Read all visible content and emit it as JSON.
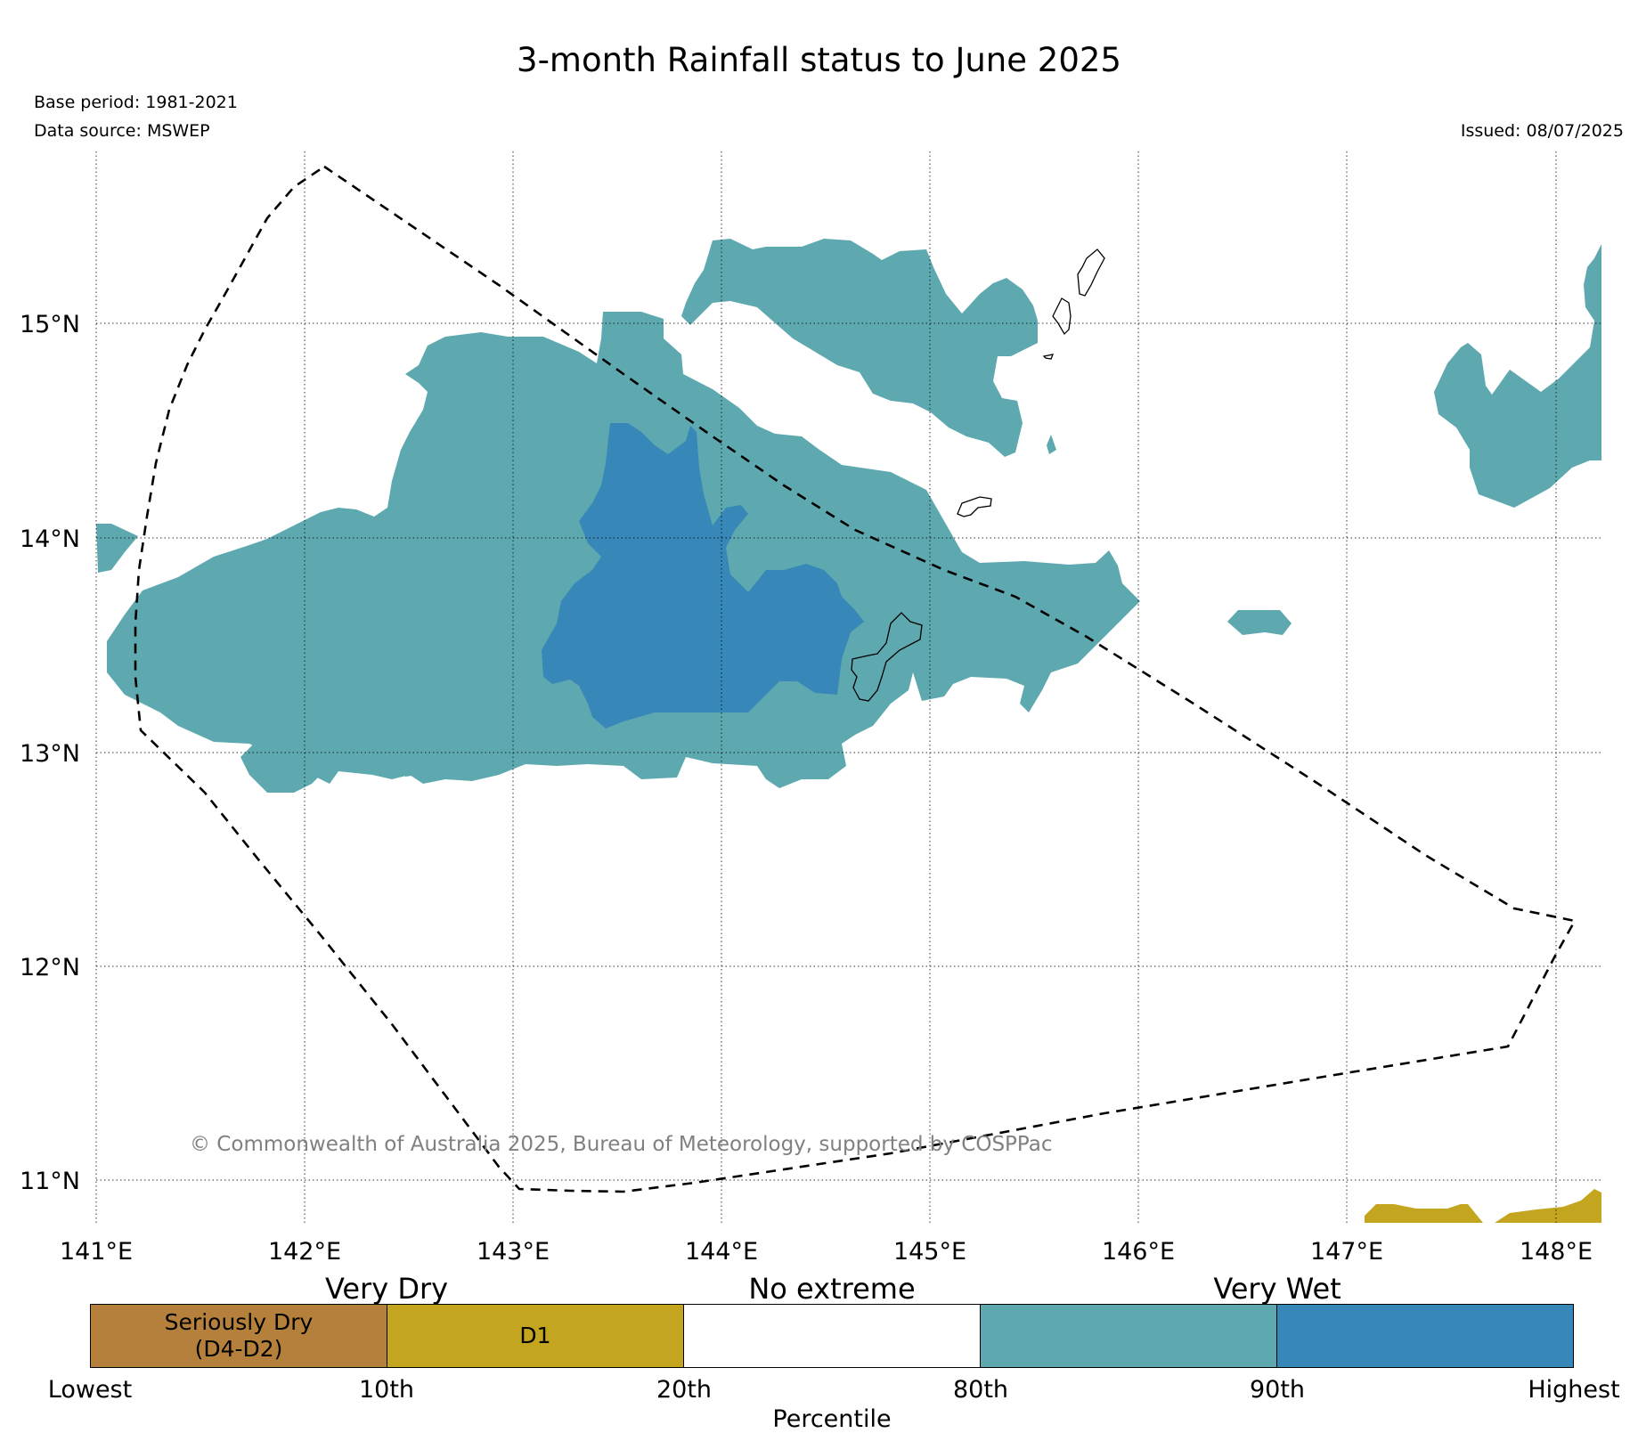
{
  "header": {
    "title": "3-month Rainfall status to June 2025",
    "base_period": "Base period: 1981-2021",
    "data_source": "Data source: MSWEP",
    "issued": "Issued: 08/07/2025"
  },
  "map": {
    "lon_labels": [
      "141°E",
      "142°E",
      "143°E",
      "144°E",
      "145°E",
      "146°E",
      "147°E",
      "148°E"
    ],
    "lat_labels": [
      "11°N",
      "12°N",
      "13°N",
      "14°N",
      "15°N"
    ],
    "copyright": "© Commonwealth of Australia 2025, Bureau of Meteorology, supported by COSPPac",
    "gridlines": "dotted",
    "eez_boundary": "dashed"
  },
  "legend": {
    "headings": [
      "Very Dry",
      "No extreme",
      "Very Wet"
    ],
    "categories": [
      {
        "label": "Seriously Dry\n(D4-D2)",
        "color": "#b5803b"
      },
      {
        "label": "D1",
        "color": "#c4a51f"
      },
      {
        "label": "",
        "color": "#ffffff"
      },
      {
        "label": "",
        "color": "#5ea9b0"
      },
      {
        "label": "",
        "color": "#3787b8"
      }
    ],
    "ticks": [
      "Lowest",
      "10th",
      "20th",
      "80th",
      "90th",
      "Highest"
    ],
    "xlabel": "Percentile"
  },
  "colors": {
    "very_wet_80_90": "#5ea9b0",
    "very_wet_90_plus": "#3787b8",
    "d1": "#c4a51f"
  }
}
